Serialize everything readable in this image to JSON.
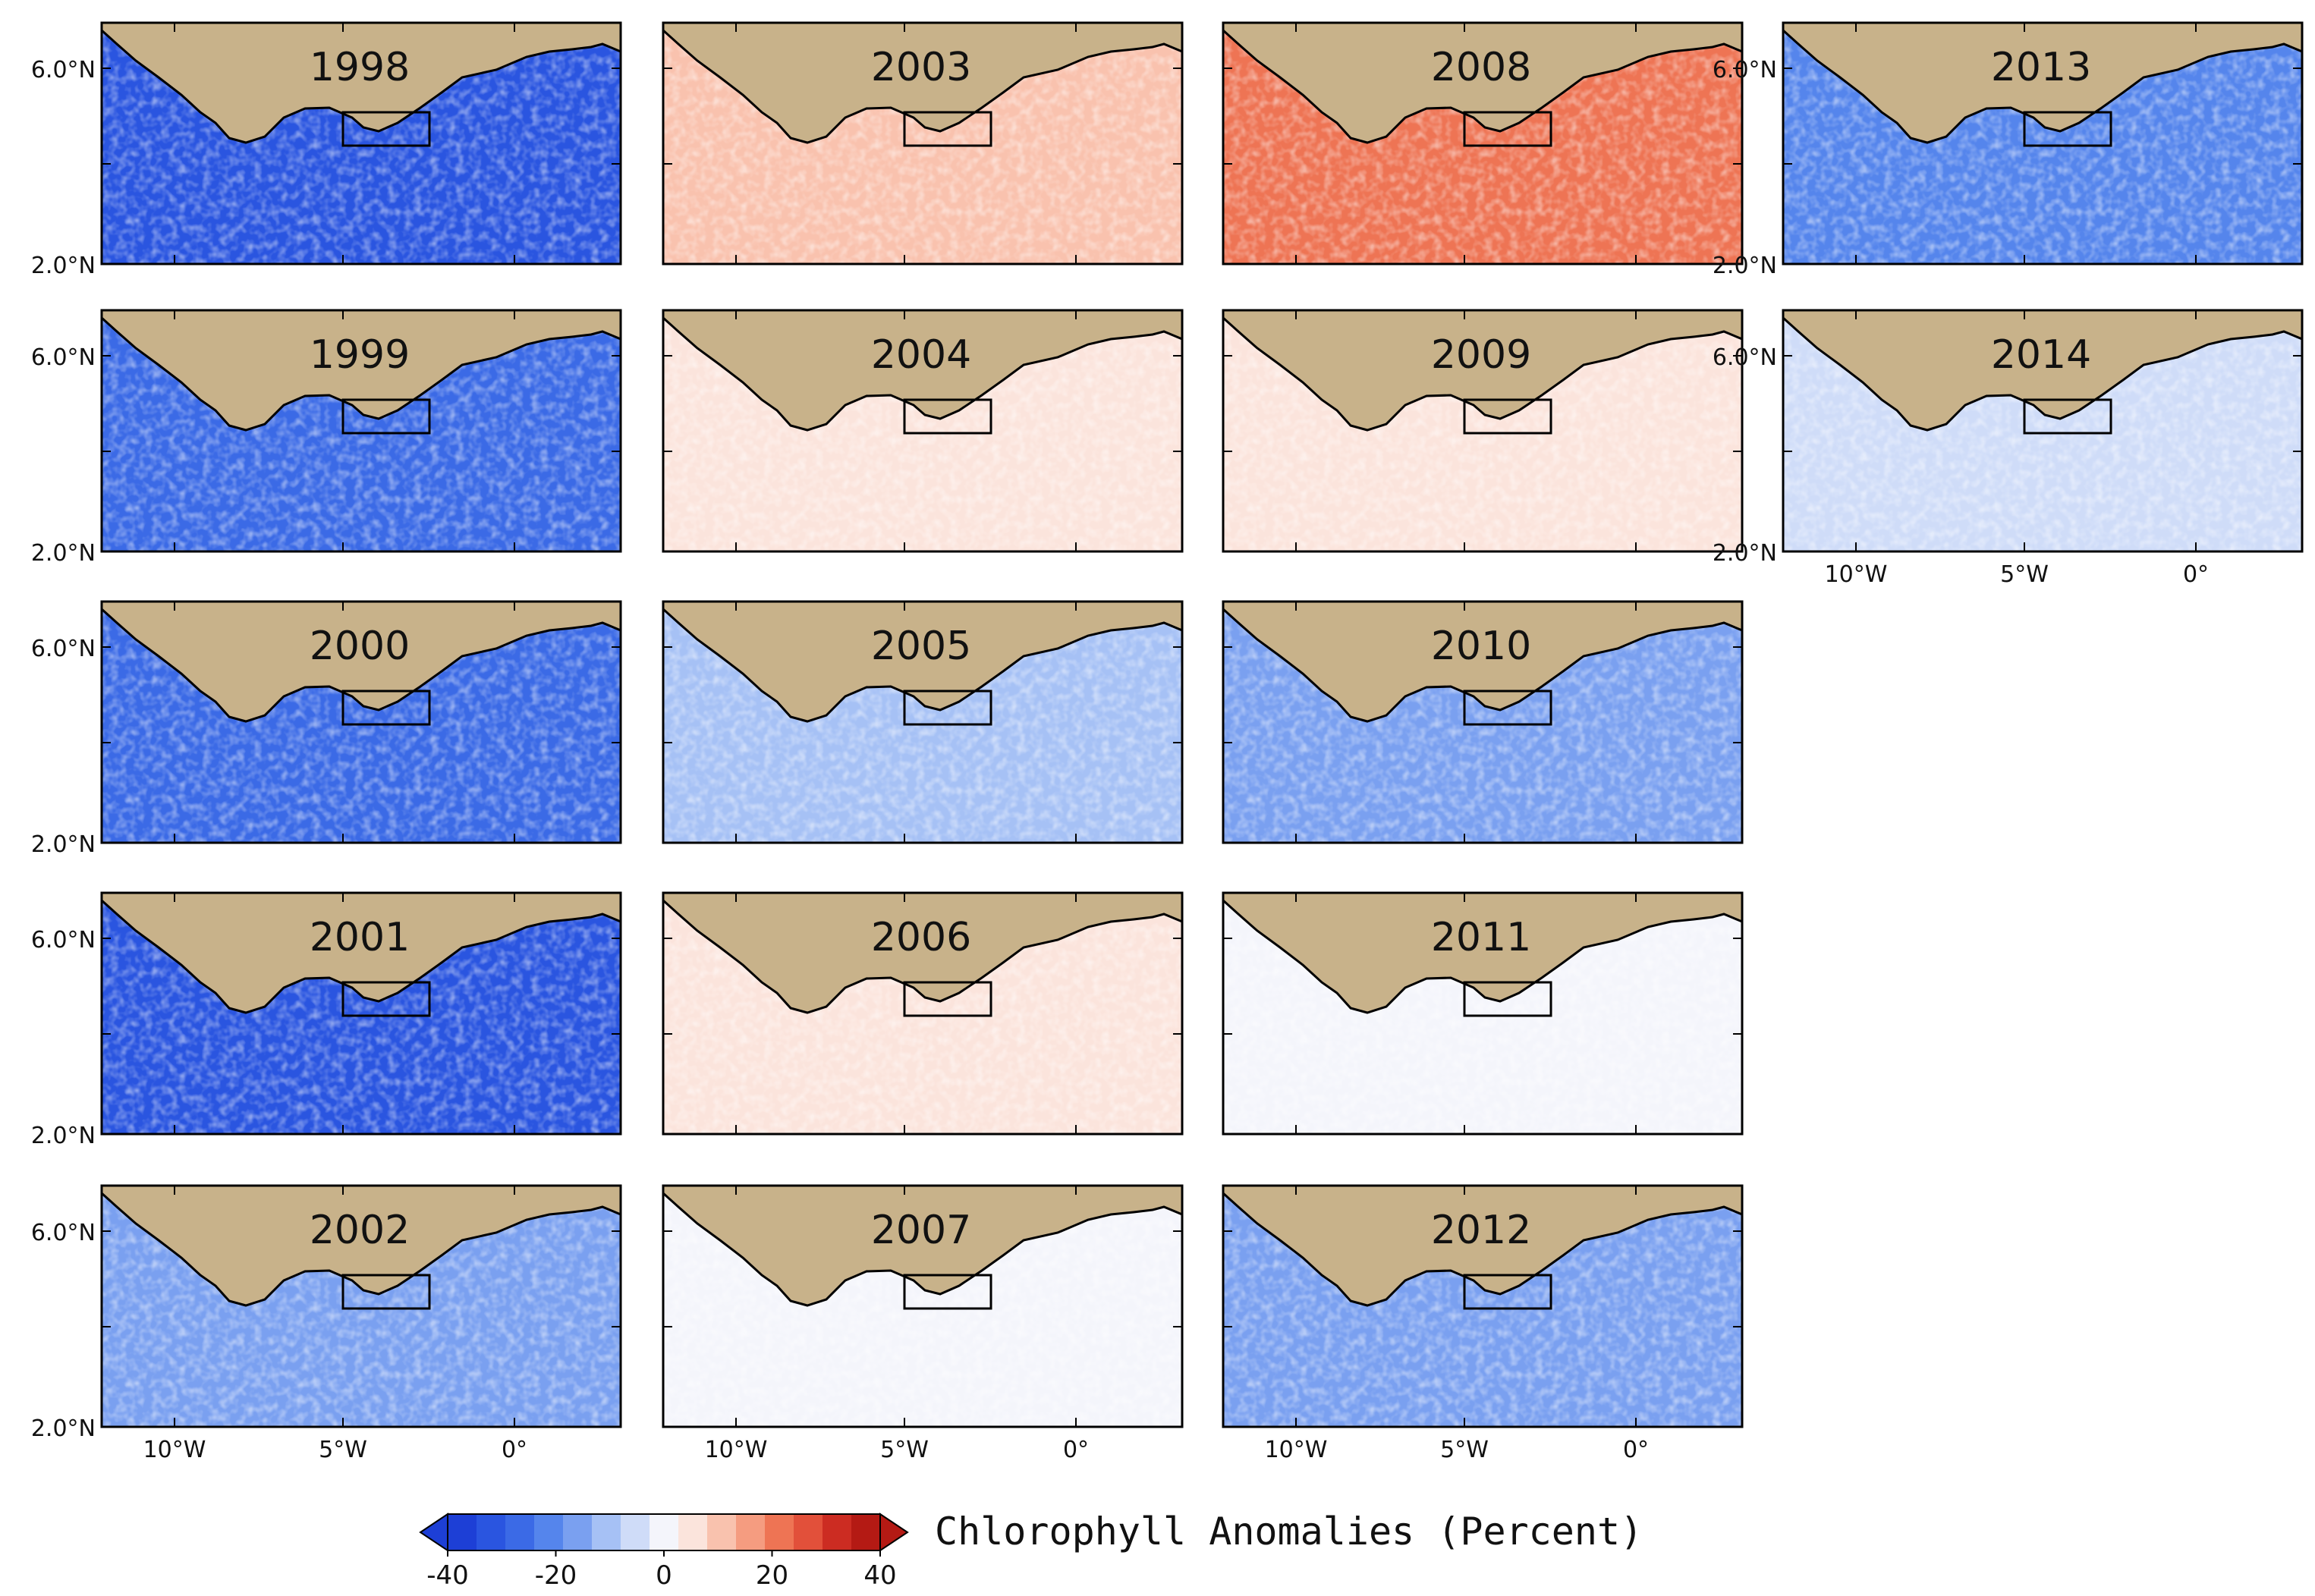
{
  "figure": {
    "colorbar": {
      "title": "Chlorophyll Anomalies (Percent)",
      "ticks": [
        "-40",
        "-20",
        "0",
        "20",
        "40"
      ],
      "colors": [
        "#1d3fd6",
        "#2a55e0",
        "#3b6ae6",
        "#5585ec",
        "#7aa0f0",
        "#a6c1f5",
        "#cfdcf8",
        "#f4f5fb",
        "#fbe4dc",
        "#f9c2ae",
        "#f59c80",
        "#ee7454",
        "#e2503a",
        "#cc2c22",
        "#b41a14"
      ]
    },
    "y_labels": [
      "6.0°N",
      "2.0°N"
    ],
    "x_labels": [
      "10°W",
      "5°W",
      "0°"
    ],
    "land_color": "#c8b28a",
    "panels": [
      {
        "year": "1998",
        "anomaly": -32
      },
      {
        "year": "1999",
        "anomaly": -28
      },
      {
        "year": "2000",
        "anomaly": -26
      },
      {
        "year": "2001",
        "anomaly": -30
      },
      {
        "year": "2002",
        "anomaly": -18
      },
      {
        "year": "2003",
        "anomaly": 10
      },
      {
        "year": "2004",
        "anomaly": 6
      },
      {
        "year": "2005",
        "anomaly": -10
      },
      {
        "year": "2006",
        "anomaly": 4
      },
      {
        "year": "2007",
        "anomaly": 2
      },
      {
        "year": "2008",
        "anomaly": 20
      },
      {
        "year": "2009",
        "anomaly": 4
      },
      {
        "year": "2010",
        "anomaly": -14
      },
      {
        "year": "2011",
        "anomaly": 2
      },
      {
        "year": "2012",
        "anomaly": -16
      },
      {
        "year": "2013",
        "anomaly": -24
      },
      {
        "year": "2014",
        "anomaly": -8
      }
    ]
  }
}
